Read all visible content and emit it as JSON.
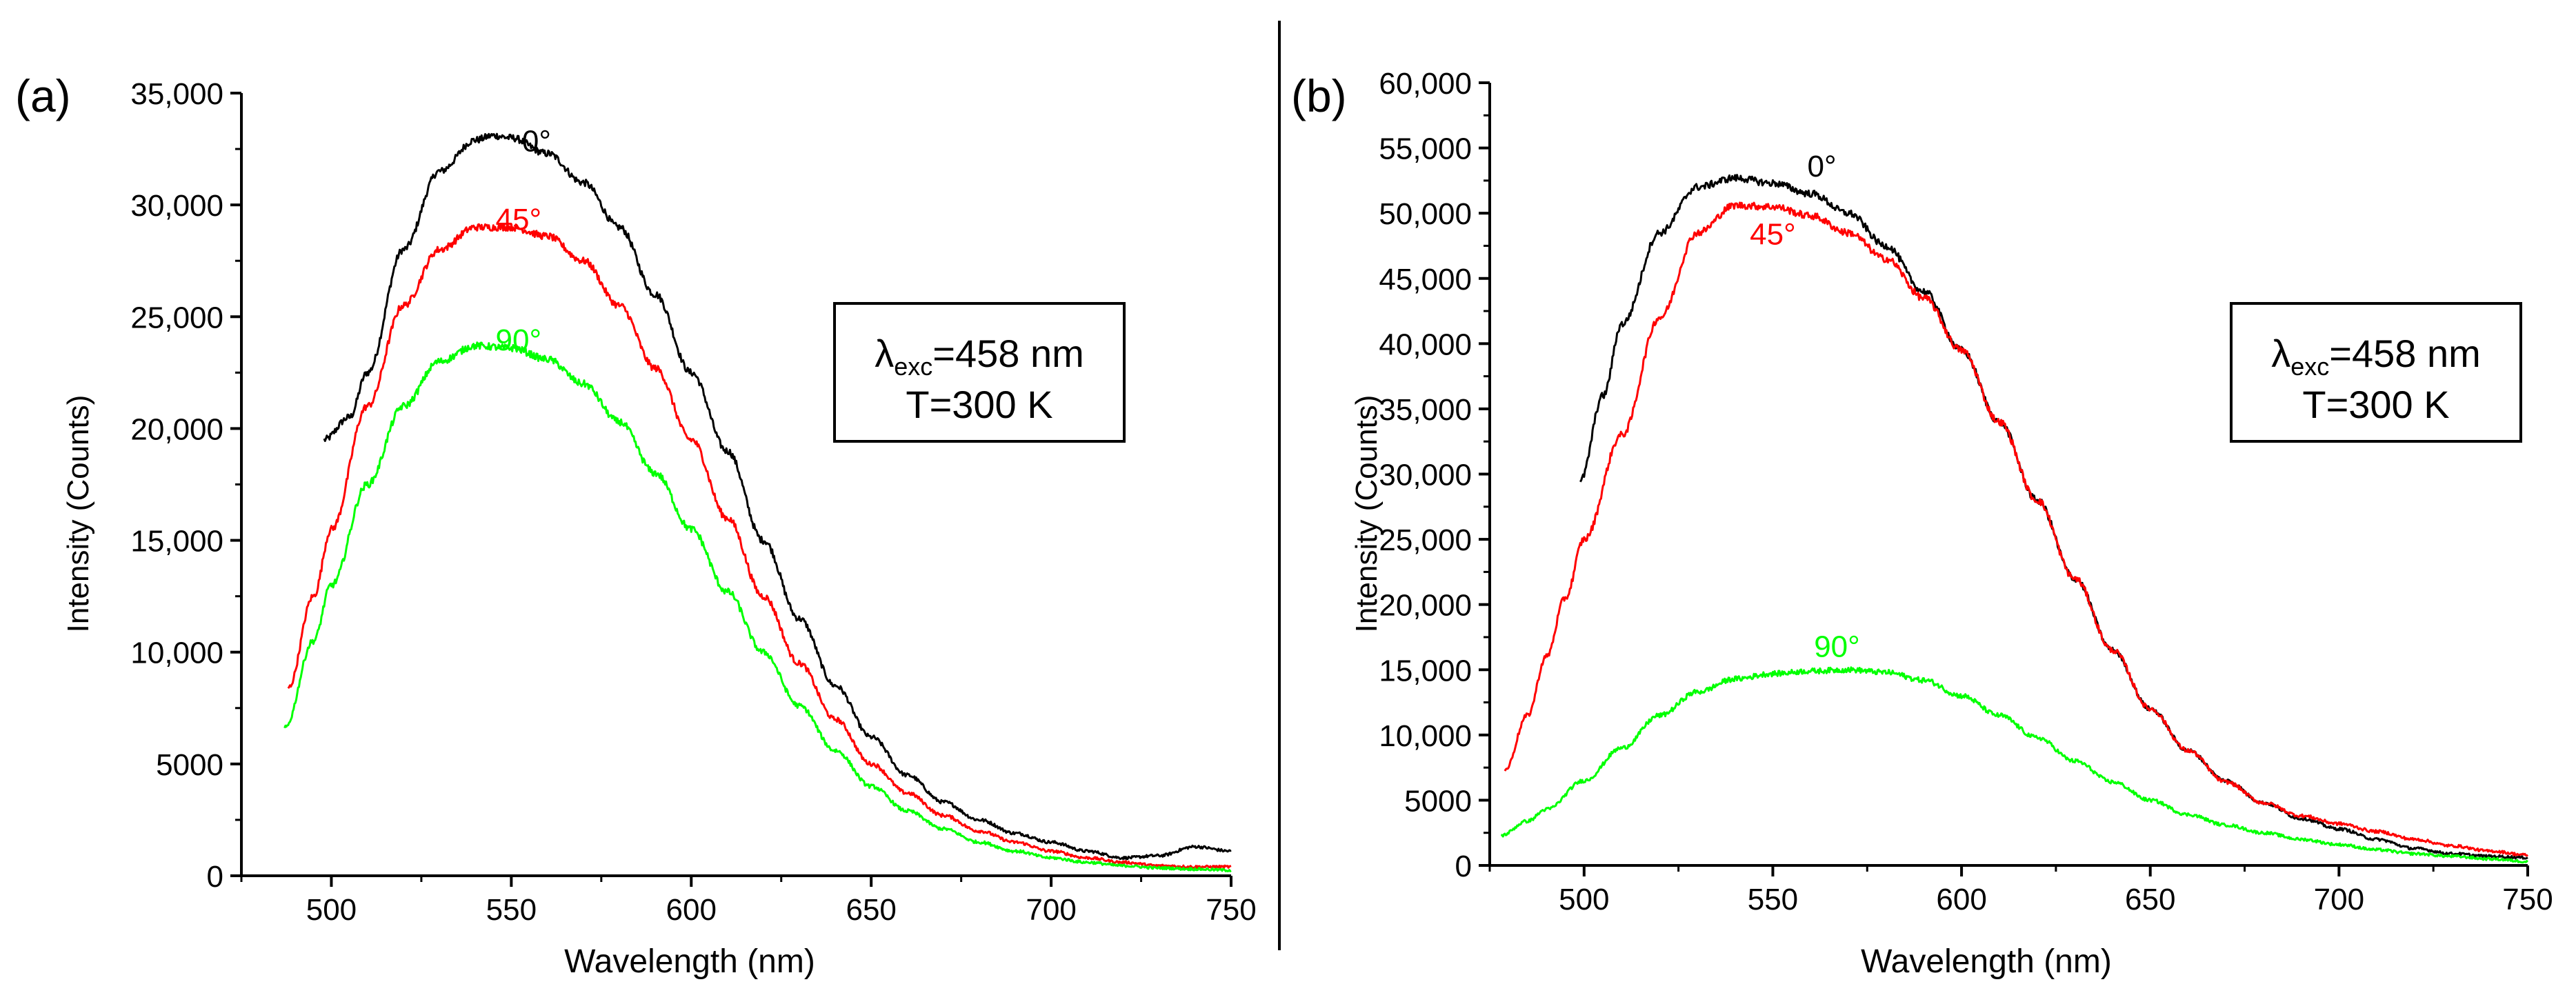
{
  "divider": true,
  "chart_data": [
    {
      "type": "line",
      "panel_label": "(a)",
      "xlabel": "Wavelength (nm)",
      "ylabel": "Intensity (Counts)",
      "xlim": [
        475,
        750
      ],
      "ylim": [
        0,
        35000
      ],
      "x_ticks": [
        500,
        550,
        600,
        650,
        700,
        750
      ],
      "x_tick_labels": [
        "500",
        "550",
        "600",
        "650",
        "700",
        "750"
      ],
      "y_ticks": [
        0,
        5000,
        10000,
        15000,
        20000,
        25000,
        30000,
        35000
      ],
      "y_tick_labels": [
        "0",
        "5000",
        "10,000",
        "15,000",
        "20,000",
        "25,000",
        "30,000",
        "35,000"
      ],
      "grid": false,
      "annotation": {
        "line1_symbol": "λ",
        "line1_sub": "exc",
        "line1_rest": "=458 nm",
        "line2": "T=300 K"
      },
      "series": [
        {
          "name": "0°",
          "color": "#000000",
          "label_at": [
            557,
            32400
          ],
          "x": [
            498,
            505,
            510,
            520,
            530,
            540,
            545,
            550,
            560,
            570,
            580,
            590,
            600,
            610,
            620,
            630,
            640,
            650,
            660,
            670,
            680,
            690,
            700,
            710,
            720,
            730,
            740,
            750
          ],
          "y": [
            19500,
            20500,
            22500,
            28000,
            31500,
            32900,
            33100,
            33000,
            32300,
            31000,
            29000,
            26000,
            22500,
            19000,
            15000,
            11500,
            8500,
            6200,
            4500,
            3300,
            2500,
            1900,
            1500,
            1100,
            800,
            900,
            1300,
            1100
          ]
        },
        {
          "name": "45°",
          "color": "#ff0000",
          "label_at": [
            552,
            28900
          ],
          "x": [
            488,
            495,
            500,
            510,
            520,
            530,
            540,
            550,
            560,
            570,
            580,
            590,
            600,
            610,
            620,
            630,
            640,
            650,
            660,
            670,
            680,
            690,
            700,
            710,
            720,
            730,
            740,
            750
          ],
          "y": [
            8400,
            12500,
            15500,
            21000,
            25500,
            28000,
            29000,
            29000,
            28600,
            27500,
            25500,
            22700,
            19500,
            16000,
            12500,
            9500,
            7000,
            5000,
            3700,
            2700,
            2000,
            1500,
            1100,
            800,
            600,
            450,
            400,
            400
          ]
        },
        {
          "name": "90°",
          "color": "#00ff00",
          "label_at": [
            552,
            23500
          ],
          "x": [
            487,
            495,
            500,
            510,
            520,
            530,
            540,
            550,
            560,
            570,
            580,
            590,
            600,
            610,
            620,
            630,
            640,
            650,
            660,
            670,
            680,
            690,
            700,
            710,
            720,
            730,
            740,
            750
          ],
          "y": [
            6600,
            10500,
            13000,
            17500,
            21000,
            23000,
            23700,
            23600,
            23100,
            22000,
            20300,
            18000,
            15500,
            12700,
            10000,
            7600,
            5600,
            4000,
            2900,
            2100,
            1500,
            1100,
            800,
            600,
            450,
            350,
            300,
            250
          ]
        }
      ]
    },
    {
      "type": "line",
      "panel_label": "(b)",
      "xlabel": "Wavelength (nm)",
      "ylabel": "Intensity (Counts)",
      "xlim": [
        475,
        750
      ],
      "ylim": [
        0,
        60000
      ],
      "x_ticks": [
        500,
        550,
        600,
        650,
        700,
        750
      ],
      "x_tick_labels": [
        "500",
        "550",
        "600",
        "650",
        "700",
        "750"
      ],
      "y_ticks": [
        0,
        5000,
        10000,
        15000,
        20000,
        25000,
        30000,
        35000,
        40000,
        45000,
        50000,
        55000,
        60000
      ],
      "y_tick_labels": [
        "0",
        "5000",
        "10,000",
        "15,000",
        "20,000",
        "25,000",
        "30,000",
        "35,000",
        "40,000",
        "45,000",
        "50,000",
        "55,000",
        "60,000"
      ],
      "grid": false,
      "annotation": {
        "line1_symbol": "λ",
        "line1_sub": "exc",
        "line1_rest": "=458 nm",
        "line2": "T=300 K"
      },
      "series": [
        {
          "name": "0°",
          "color": "#000000",
          "label_at": [
            563,
            52800
          ],
          "x": [
            499,
            505,
            510,
            520,
            530,
            540,
            550,
            560,
            570,
            580,
            590,
            600,
            610,
            620,
            630,
            640,
            650,
            660,
            670,
            680,
            690,
            700,
            710,
            720,
            730,
            740,
            750
          ],
          "y": [
            29500,
            36000,
            41500,
            48500,
            52000,
            52700,
            52300,
            51500,
            50000,
            47500,
            44000,
            39500,
            34000,
            28000,
            22000,
            16500,
            12000,
            8800,
            6500,
            4800,
            3600,
            2800,
            2000,
            1300,
            900,
            700,
            600
          ]
        },
        {
          "name": "45°",
          "color": "#ff0000",
          "label_at": [
            550,
            47600
          ],
          "x": [
            479,
            485,
            490,
            495,
            500,
            510,
            520,
            530,
            540,
            550,
            560,
            570,
            580,
            590,
            600,
            610,
            620,
            630,
            640,
            650,
            660,
            670,
            680,
            690,
            700,
            710,
            720,
            730,
            740,
            750
          ],
          "y": [
            7300,
            11500,
            16000,
            20500,
            25000,
            33000,
            42000,
            48500,
            50600,
            50500,
            49800,
            48500,
            46500,
            43500,
            39500,
            34000,
            28000,
            22000,
            16500,
            12000,
            8800,
            6400,
            4800,
            3800,
            3200,
            2600,
            2000,
            1500,
            1100,
            800
          ]
        },
        {
          "name": "90°",
          "color": "#00ff00",
          "label_at": [
            567,
            16000
          ],
          "x": [
            478,
            485,
            490,
            500,
            510,
            520,
            530,
            540,
            550,
            560,
            570,
            580,
            590,
            600,
            610,
            620,
            630,
            640,
            650,
            660,
            670,
            680,
            690,
            700,
            710,
            720,
            730,
            740,
            750
          ],
          "y": [
            2300,
            3400,
            4300,
            6500,
            9000,
            11500,
            13300,
            14300,
            14700,
            14900,
            15000,
            14800,
            14200,
            13000,
            11500,
            9800,
            8000,
            6400,
            5000,
            3900,
            3100,
            2500,
            2000,
            1600,
            1200,
            900,
            700,
            500,
            300
          ]
        }
      ]
    }
  ]
}
